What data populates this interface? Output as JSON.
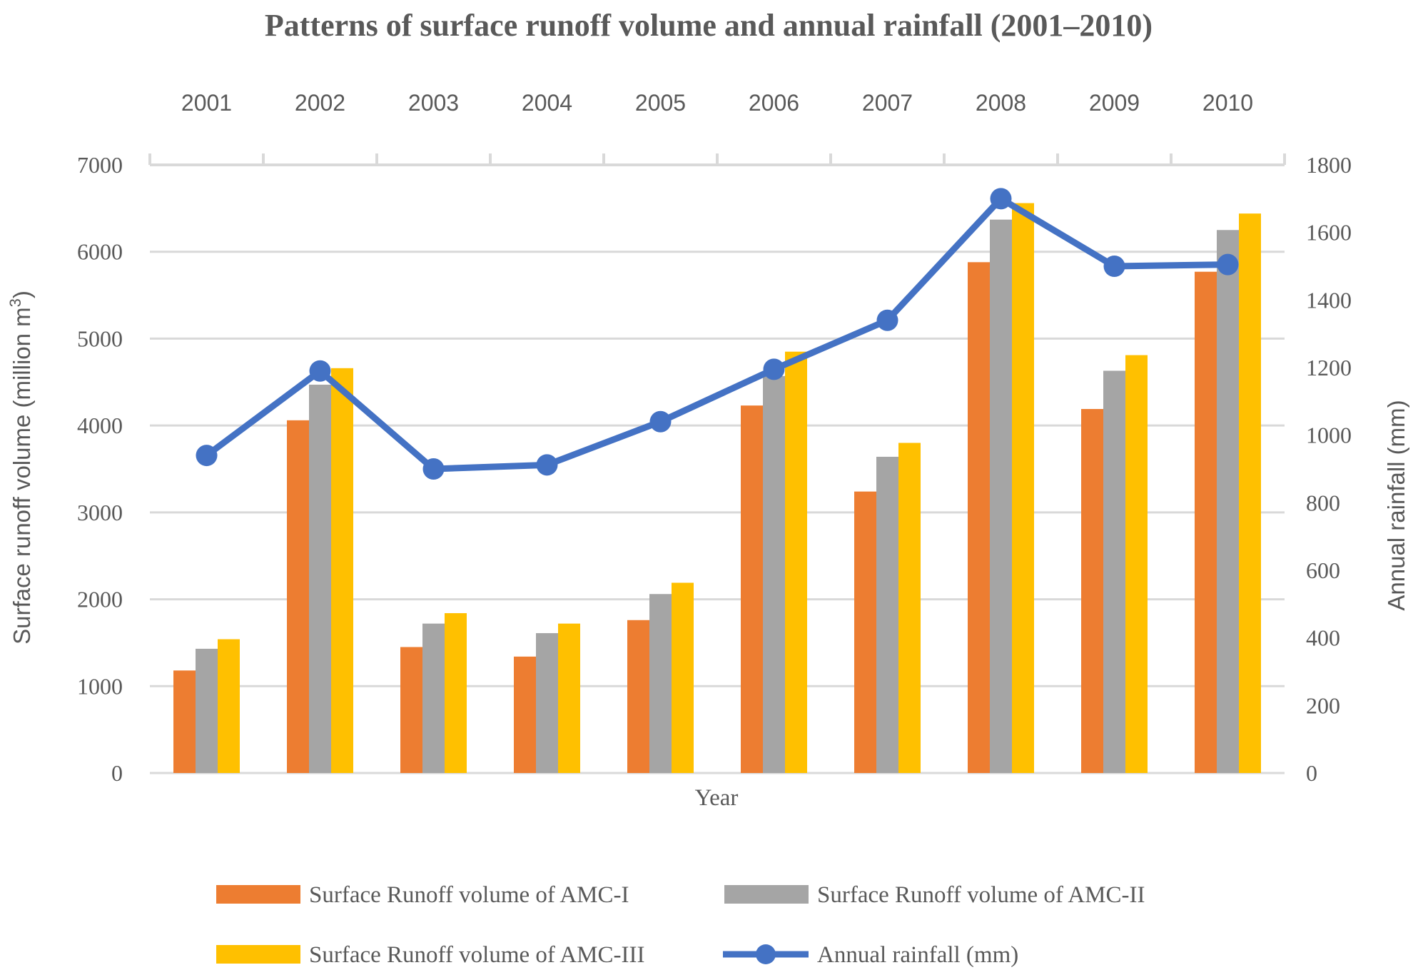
{
  "chart_data": {
    "type": "bar",
    "title": "Patterns of surface runoff volume and annual rainfall  (2001–2010)",
    "xlabel": "Year",
    "ylabel": "Surface runoff volume (million m",
    "ylabel_sup": "3",
    "ylabel_close": ")",
    "y2label": "Annual rainfall (mm)",
    "categories": [
      "2001",
      "2002",
      "2003",
      "2004",
      "2005",
      "2006",
      "2007",
      "2008",
      "2009",
      "2010"
    ],
    "ylim": [
      0,
      7000
    ],
    "yticks": [
      "0",
      "1000",
      "2000",
      "3000",
      "4000",
      "5000",
      "6000",
      "7000"
    ],
    "y2lim": [
      0,
      1800
    ],
    "y2ticks": [
      "0",
      "200",
      "400",
      "600",
      "800",
      "1000",
      "1200",
      "1400",
      "1600",
      "1800"
    ],
    "grid": true,
    "legend_position": "bottom",
    "series": [
      {
        "name": "Surface Runoff volume of AMC-I",
        "type": "bar",
        "axis": "left",
        "color": "#ED7D31",
        "values": [
          1180,
          4060,
          1450,
          1340,
          1760,
          4230,
          3240,
          5880,
          4190,
          5770
        ]
      },
      {
        "name": "Surface Runoff volume of AMC-II",
        "type": "bar",
        "axis": "left",
        "color": "#A5A5A5",
        "values": [
          1430,
          4470,
          1720,
          1610,
          2060,
          4570,
          3640,
          6370,
          4630,
          6250
        ]
      },
      {
        "name": "Surface Runoff volume of AMC-III",
        "type": "bar",
        "axis": "left",
        "color": "#FFC000",
        "values": [
          1540,
          4660,
          1840,
          1720,
          2190,
          4850,
          3800,
          6560,
          4810,
          6440
        ]
      },
      {
        "name": "Annual rainfall (mm)",
        "type": "line",
        "axis": "right",
        "color": "#4472C4",
        "values": [
          940,
          1190,
          900,
          912,
          1040,
          1195,
          1340,
          1700,
          1500,
          1505
        ]
      }
    ]
  }
}
